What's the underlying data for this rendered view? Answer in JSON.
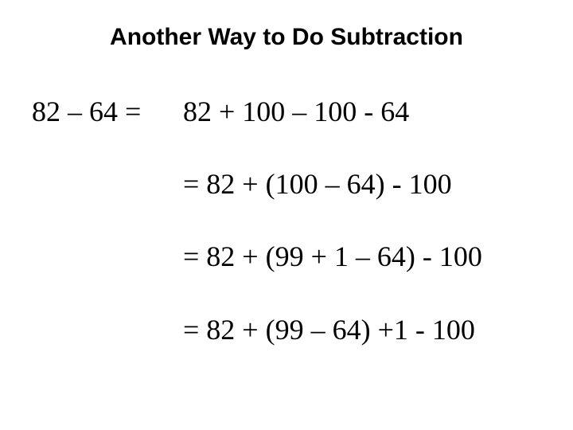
{
  "title": "Another Way to Do Subtraction",
  "title_fontsize": 30,
  "title_fontweight": 700,
  "title_fontfamily": "Arial",
  "body_fontsize": 36,
  "body_fontfamily": "Times New Roman",
  "text_color": "#000000",
  "background_color": "#ffffff",
  "lines": [
    {
      "lhs": "82 – 64 =",
      "rhs": "82 + 100 – 100 - 64"
    },
    {
      "lhs": "",
      "rhs": "=  82 + (100 – 64) - 100"
    },
    {
      "lhs": "",
      "rhs": "=  82 + (99 + 1 – 64) - 100"
    },
    {
      "lhs": "",
      "rhs": "=  82 + (99 – 64) +1 - 100"
    }
  ]
}
